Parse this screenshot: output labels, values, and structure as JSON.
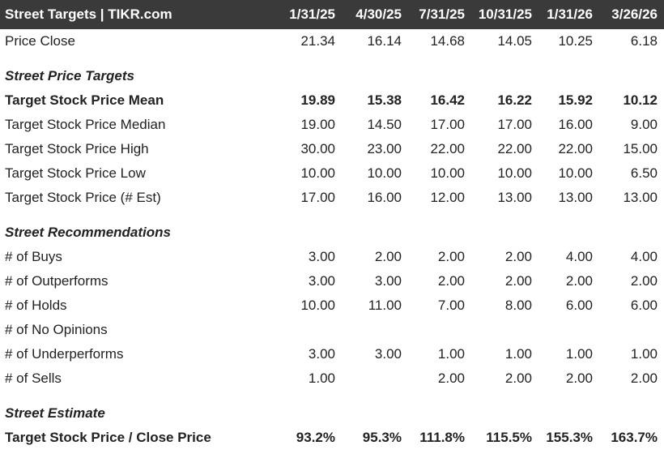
{
  "header": {
    "title": "Street Targets | TIKR.com",
    "columns": [
      "1/31/25",
      "4/30/25",
      "7/31/25",
      "10/31/25",
      "1/31/26",
      "3/26/26"
    ]
  },
  "price_close": {
    "label": "Price Close",
    "values": [
      "21.34",
      "16.14",
      "14.68",
      "14.05",
      "10.25",
      "6.18"
    ]
  },
  "sections": {
    "targets_title": "Street Price Targets",
    "recs_title": "Street Recommendations",
    "estimate_title": "Street Estimate"
  },
  "targets": [
    {
      "label": "Target Stock Price Mean",
      "values": [
        "19.89",
        "15.38",
        "16.42",
        "16.22",
        "15.92",
        "10.12"
      ]
    },
    {
      "label": "Target Stock Price Median",
      "values": [
        "19.00",
        "14.50",
        "17.00",
        "17.00",
        "16.00",
        "9.00"
      ]
    },
    {
      "label": "Target Stock Price High",
      "values": [
        "30.00",
        "23.00",
        "22.00",
        "22.00",
        "22.00",
        "15.00"
      ]
    },
    {
      "label": "Target Stock Price Low",
      "values": [
        "10.00",
        "10.00",
        "10.00",
        "10.00",
        "10.00",
        "6.50"
      ]
    },
    {
      "label": "Target Stock Price (# Est)",
      "values": [
        "17.00",
        "16.00",
        "12.00",
        "13.00",
        "13.00",
        "13.00"
      ]
    }
  ],
  "recommendations": [
    {
      "label": "# of Buys",
      "values": [
        "3.00",
        "2.00",
        "2.00",
        "2.00",
        "4.00",
        "4.00"
      ]
    },
    {
      "label": "# of Outperforms",
      "values": [
        "3.00",
        "3.00",
        "2.00",
        "2.00",
        "2.00",
        "2.00"
      ]
    },
    {
      "label": "# of Holds",
      "values": [
        "10.00",
        "11.00",
        "7.00",
        "8.00",
        "6.00",
        "6.00"
      ]
    },
    {
      "label": "# of No Opinions",
      "values": [
        "",
        "",
        "",
        "",
        "",
        ""
      ]
    },
    {
      "label": "# of Underperforms",
      "values": [
        "3.00",
        "3.00",
        "1.00",
        "1.00",
        "1.00",
        "1.00"
      ]
    },
    {
      "label": "# of Sells",
      "values": [
        "1.00",
        "",
        "2.00",
        "2.00",
        "2.00",
        "2.00"
      ]
    }
  ],
  "estimate": {
    "label": "Target Stock Price / Close Price",
    "values": [
      "93.2%",
      "95.3%",
      "111.8%",
      "115.5%",
      "155.3%",
      "163.7%"
    ]
  }
}
